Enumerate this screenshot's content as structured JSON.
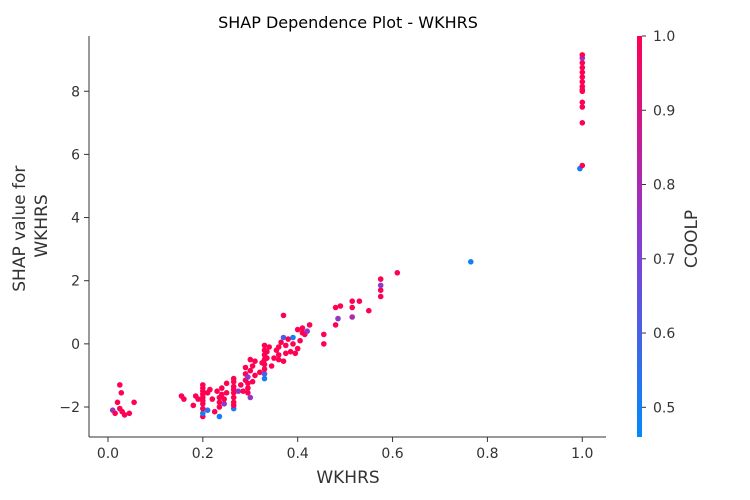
{
  "chart_data": {
    "type": "scatter",
    "title": "SHAP Dependence Plot - WKHRS",
    "xlabel": "WKHRS",
    "ylabel": "SHAP value for\nWKHRS",
    "xlim": [
      -0.04,
      1.05
    ],
    "ylim": [
      -2.95,
      9.75
    ],
    "xticks": [
      "0.0",
      "0.2",
      "0.4",
      "0.6",
      "0.8",
      "1.0"
    ],
    "yticks": [
      "−2",
      "0",
      "2",
      "4",
      "6",
      "8"
    ],
    "grid": false,
    "colorbar": {
      "label": "COOLP",
      "range": [
        0.46,
        1.0
      ],
      "ticks": [
        "0.5",
        "0.6",
        "0.7",
        "0.8",
        "0.9",
        "1.0"
      ],
      "colors": [
        "#008bfb",
        "#8a3ad0",
        "#ff0052"
      ]
    },
    "points": [
      [
        0.01,
        -2.1,
        0.75
      ],
      [
        0.015,
        -2.2,
        1
      ],
      [
        0.02,
        -1.85,
        1
      ],
      [
        0.025,
        -2.05,
        1
      ],
      [
        0.025,
        -1.3,
        1
      ],
      [
        0.028,
        -1.55,
        1
      ],
      [
        0.03,
        -2.15,
        1
      ],
      [
        0.035,
        -2.25,
        1
      ],
      [
        0.045,
        -2.2,
        1
      ],
      [
        0.055,
        -1.85,
        1
      ],
      [
        0.155,
        -1.65,
        1
      ],
      [
        0.16,
        -1.75,
        1
      ],
      [
        0.18,
        -1.95,
        1
      ],
      [
        0.185,
        -1.65,
        1
      ],
      [
        0.19,
        -1.75,
        1
      ],
      [
        0.2,
        -2.3,
        1
      ],
      [
        0.2,
        -2.2,
        0.5
      ],
      [
        0.2,
        -2.05,
        1
      ],
      [
        0.2,
        -1.9,
        1
      ],
      [
        0.2,
        -1.8,
        1
      ],
      [
        0.2,
        -1.7,
        1
      ],
      [
        0.2,
        -1.6,
        1
      ],
      [
        0.2,
        -1.5,
        1
      ],
      [
        0.2,
        -1.4,
        1
      ],
      [
        0.2,
        -1.3,
        1
      ],
      [
        0.21,
        -2.1,
        0.55
      ],
      [
        0.21,
        -1.55,
        1
      ],
      [
        0.215,
        -1.45,
        1
      ],
      [
        0.22,
        -1.75,
        1
      ],
      [
        0.225,
        -2.15,
        1
      ],
      [
        0.23,
        -1.5,
        1
      ],
      [
        0.235,
        -2.3,
        0.5
      ],
      [
        0.235,
        -2.0,
        1
      ],
      [
        0.235,
        -1.85,
        1
      ],
      [
        0.235,
        -1.7,
        1
      ],
      [
        0.24,
        -1.6,
        1
      ],
      [
        0.24,
        -1.4,
        1
      ],
      [
        0.245,
        -1.9,
        0.75
      ],
      [
        0.245,
        -1.75,
        1
      ],
      [
        0.25,
        -1.25,
        1
      ],
      [
        0.25,
        -1.55,
        1
      ],
      [
        0.265,
        -2.05,
        0.5
      ],
      [
        0.265,
        -1.95,
        1
      ],
      [
        0.265,
        -1.85,
        1
      ],
      [
        0.265,
        -1.7,
        1
      ],
      [
        0.265,
        -1.55,
        1
      ],
      [
        0.265,
        -1.45,
        1
      ],
      [
        0.265,
        -1.35,
        1
      ],
      [
        0.265,
        -1.2,
        1
      ],
      [
        0.265,
        -1.1,
        1
      ],
      [
        0.275,
        -1.5,
        0.75
      ],
      [
        0.28,
        -1.3,
        1
      ],
      [
        0.285,
        -1.5,
        1
      ],
      [
        0.29,
        -1.15,
        1
      ],
      [
        0.29,
        -0.95,
        1
      ],
      [
        0.29,
        -0.75,
        1
      ],
      [
        0.295,
        -1.55,
        1
      ],
      [
        0.295,
        -1.4,
        1
      ],
      [
        0.295,
        -1.25,
        1
      ],
      [
        0.295,
        -1.05,
        0.75
      ],
      [
        0.3,
        -1.7,
        0.75
      ],
      [
        0.3,
        -0.85,
        1
      ],
      [
        0.3,
        -0.5,
        1
      ],
      [
        0.305,
        -1.2,
        1
      ],
      [
        0.305,
        -0.7,
        1
      ],
      [
        0.31,
        -1.0,
        1
      ],
      [
        0.31,
        -0.55,
        1
      ],
      [
        0.32,
        -0.9,
        1
      ],
      [
        0.325,
        -0.6,
        1
      ],
      [
        0.33,
        -1.1,
        0.5
      ],
      [
        0.33,
        -0.95,
        0.6
      ],
      [
        0.33,
        -0.8,
        1
      ],
      [
        0.33,
        -0.65,
        1
      ],
      [
        0.33,
        -0.5,
        1
      ],
      [
        0.33,
        -0.35,
        1
      ],
      [
        0.33,
        -0.2,
        1
      ],
      [
        0.33,
        -0.05,
        1
      ],
      [
        0.335,
        -0.45,
        1
      ],
      [
        0.335,
        -0.25,
        1
      ],
      [
        0.34,
        -0.1,
        1
      ],
      [
        0.345,
        -0.7,
        1
      ],
      [
        0.35,
        -0.45,
        1
      ],
      [
        0.355,
        -0.2,
        1
      ],
      [
        0.36,
        -0.5,
        1
      ],
      [
        0.36,
        -0.35,
        1
      ],
      [
        0.36,
        -0.1,
        1
      ],
      [
        0.365,
        0.05,
        1
      ],
      [
        0.37,
        -0.55,
        1
      ],
      [
        0.37,
        0.2,
        0.6
      ],
      [
        0.37,
        0.9,
        1
      ],
      [
        0.375,
        -0.3,
        1
      ],
      [
        0.375,
        -0.05,
        1
      ],
      [
        0.38,
        0.15,
        1
      ],
      [
        0.385,
        -0.25,
        1
      ],
      [
        0.39,
        0.0,
        1
      ],
      [
        0.39,
        0.2,
        0.5
      ],
      [
        0.395,
        -0.3,
        1
      ],
      [
        0.4,
        -0.15,
        1
      ],
      [
        0.4,
        0.45,
        1
      ],
      [
        0.405,
        0.1,
        1
      ],
      [
        0.41,
        0.5,
        1
      ],
      [
        0.41,
        0.35,
        1
      ],
      [
        0.415,
        0.3,
        1
      ],
      [
        0.42,
        0.4,
        0.75
      ],
      [
        0.425,
        0.6,
        1
      ],
      [
        0.455,
        0.3,
        1
      ],
      [
        0.455,
        0.0,
        1
      ],
      [
        0.48,
        0.6,
        1
      ],
      [
        0.48,
        1.15,
        1
      ],
      [
        0.485,
        0.8,
        0.75
      ],
      [
        0.49,
        1.2,
        1
      ],
      [
        0.515,
        1.15,
        1
      ],
      [
        0.515,
        0.85,
        0.8
      ],
      [
        0.515,
        1.35,
        1
      ],
      [
        0.53,
        1.35,
        1
      ],
      [
        0.55,
        1.05,
        1
      ],
      [
        0.575,
        1.5,
        1
      ],
      [
        0.575,
        1.7,
        1
      ],
      [
        0.575,
        1.85,
        0.75
      ],
      [
        0.575,
        2.05,
        1
      ],
      [
        0.61,
        2.25,
        1
      ],
      [
        0.765,
        2.6,
        0.5
      ],
      [
        0.995,
        5.55,
        0.5
      ],
      [
        1.0,
        5.65,
        1
      ],
      [
        1.0,
        7.0,
        1
      ],
      [
        1.0,
        7.5,
        1
      ],
      [
        1.0,
        7.65,
        1
      ],
      [
        1.0,
        8.0,
        1
      ],
      [
        1.0,
        8.15,
        1
      ],
      [
        1.0,
        8.3,
        1
      ],
      [
        1.0,
        8.45,
        1
      ],
      [
        1.0,
        8.6,
        1
      ],
      [
        1.0,
        8.75,
        1
      ],
      [
        1.0,
        8.9,
        1
      ],
      [
        1.0,
        9.05,
        0.75
      ],
      [
        1.0,
        9.15,
        1
      ],
      [
        1.0,
        8.05,
        1
      ]
    ]
  }
}
